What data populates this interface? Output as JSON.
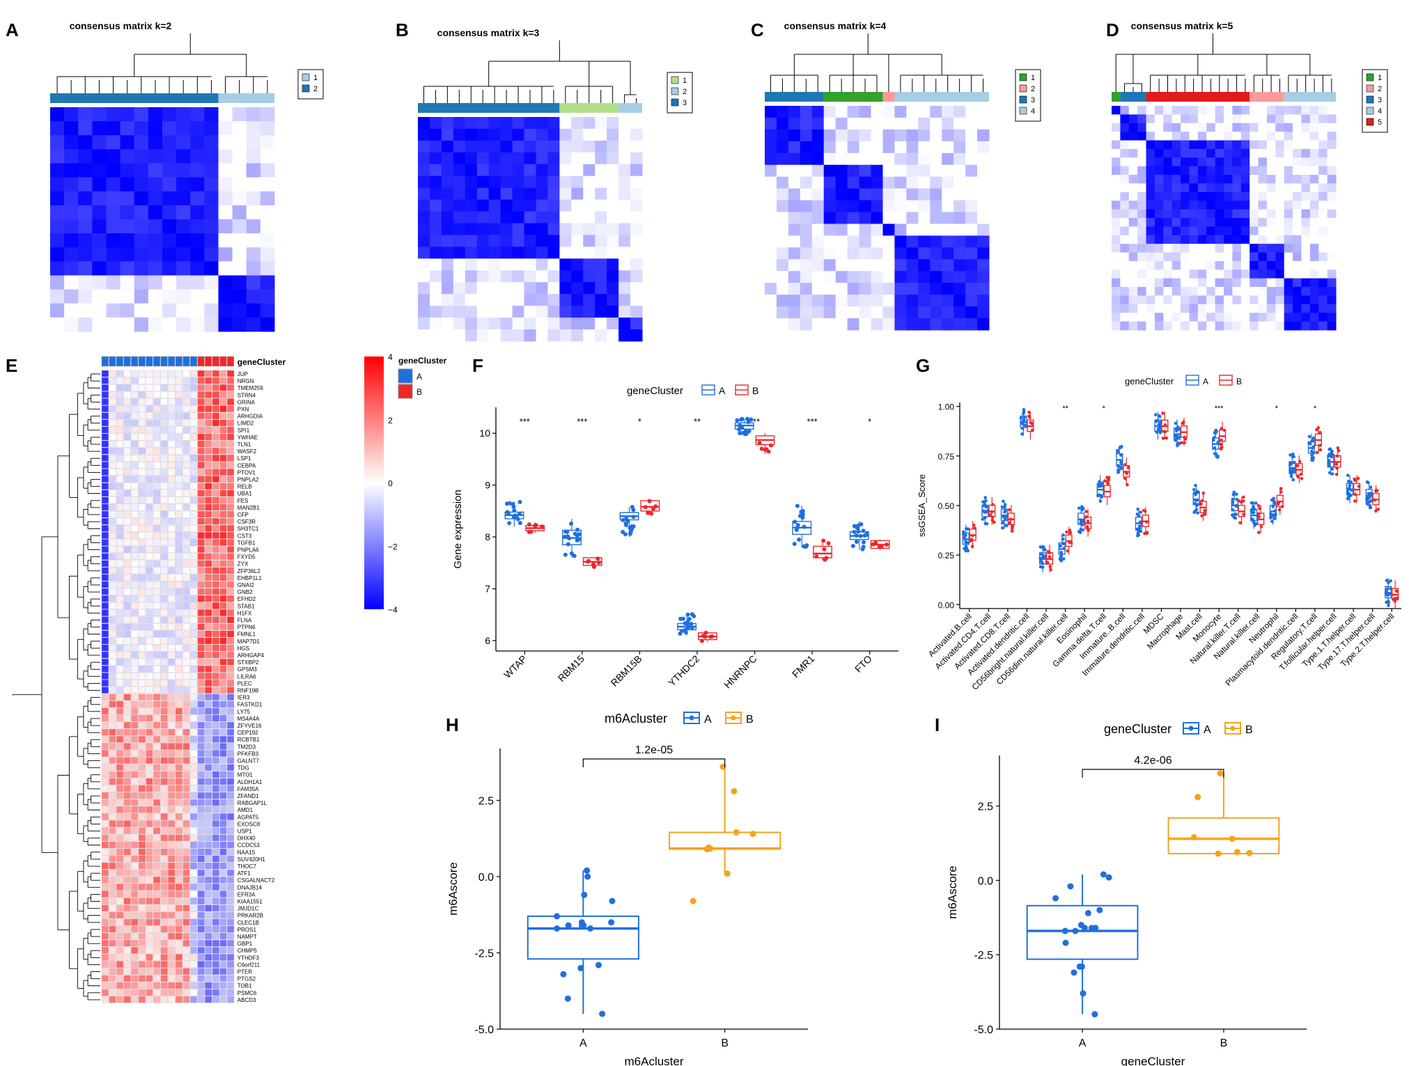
{
  "panels": {
    "A": "A",
    "B": "B",
    "C": "C",
    "D": "D",
    "E": "E",
    "F": "F",
    "G": "G",
    "H": "H",
    "I": "I"
  },
  "chart_data": [
    {
      "id": "A",
      "type": "heatmap",
      "title": "consensus matrix k=2",
      "legend": [
        "1",
        "2"
      ],
      "legend_colors": [
        "#a6cee3",
        "#1f78b4"
      ],
      "cluster_sizes": [
        4,
        12
      ],
      "cluster_order": [
        2,
        1
      ],
      "x": [],
      "y": []
    },
    {
      "id": "B",
      "type": "heatmap",
      "title": "consensus matrix k=3",
      "legend": [
        "1",
        "2",
        "3"
      ],
      "legend_colors": [
        "#b2df8a",
        "#a6cee3",
        "#1f78b4"
      ],
      "cluster_sizes": [
        5,
        2,
        12
      ],
      "cluster_order": [
        3,
        1,
        2
      ],
      "x": [],
      "y": []
    },
    {
      "id": "C",
      "type": "heatmap",
      "title": "consensus matrix k=4",
      "legend": [
        "1",
        "2",
        "3",
        "4"
      ],
      "legend_colors": [
        "#33a02c",
        "#fb9a99",
        "#1f78b4",
        "#a6cee3"
      ],
      "cluster_sizes": [
        5,
        1,
        5,
        8
      ],
      "cluster_order": [
        3,
        1,
        2,
        4
      ],
      "x": [],
      "y": []
    },
    {
      "id": "D",
      "type": "heatmap",
      "title": "consensus matrix k=5",
      "legend": [
        "1",
        "2",
        "3",
        "4",
        "5"
      ],
      "legend_colors": [
        "#33a02c",
        "#fb9a99",
        "#1f78b4",
        "#a6cee3",
        "#e31a1c"
      ],
      "cluster_sizes": [
        1,
        4,
        3,
        6,
        12
      ],
      "cluster_order": [
        1,
        3,
        5,
        2,
        4
      ],
      "x": [],
      "y": []
    },
    {
      "id": "E",
      "type": "heatmap",
      "annotation_title": "geneCluster",
      "annotation_legend": [
        "A",
        "B"
      ],
      "annotation_colors": [
        "#1f6fe0",
        "#f0262a"
      ],
      "columns_A": 13,
      "columns_B": 5,
      "colorbar_ticks": [
        4,
        2,
        0,
        -2,
        -4
      ],
      "colorbar_colors": [
        "#ff0000",
        "#ffffff",
        "#0000ff"
      ],
      "genes_up_in_B": [
        "JUP",
        "NRGN",
        "TMEM259",
        "STRN4",
        "GRINA",
        "PXN",
        "ARHGDIA",
        "LIMD2",
        "SPI1",
        "YWHAE",
        "TLN1",
        "WASF2",
        "LSP1",
        "CEBPA",
        "PTOV1",
        "PNPLA2",
        "RELB",
        "UBA1",
        "FES",
        "MAN2B1",
        "CFP",
        "CSF3R",
        "SH3TC1",
        "CST3",
        "TGFB1",
        "PNPLA6",
        "FXYD5",
        "ZYX",
        "ZFP36L2",
        "EHBP1L1",
        "GNAI2",
        "GNB2",
        "EFHD2",
        "STAB1",
        "H1FX",
        "FLNA",
        "PTPN6",
        "FMNL1",
        "MAP7D1",
        "HGS",
        "ARHGAP4",
        "STXBP2",
        "GPSM3",
        "LILRA6",
        "PLEC",
        "RNF19B"
      ],
      "genes_up_in_A": [
        "IER3",
        "FASTKD1",
        "LY75",
        "MS4A4A",
        "ZFYVE16",
        "CEP192",
        "RCBTB1",
        "TM2D3",
        "PFKFB3",
        "GALNT7",
        "TDG",
        "MTO1",
        "ALDH1A1",
        "FAM35A",
        "ZFAND1",
        "RABGAP1L",
        "AMD1",
        "AGPAT5",
        "EXOSC8",
        "USP1",
        "DHX40",
        "CCDC53",
        "NAA15",
        "SUV420H1",
        "THOC7",
        "ATF1",
        "CSGALNACT2",
        "DNAJB14",
        "EFR3A",
        "KIAA1551",
        "JMJD1C",
        "PRKAR2B",
        "CLEC1B",
        "PROS1",
        "NAMPT",
        "GBP1",
        "CHMP5",
        "YTHDF3",
        "C6orf211",
        "PTER",
        "PTGS2",
        "TOB1",
        "PSMC6",
        "ABCD3"
      ],
      "x": [],
      "y": []
    },
    {
      "id": "F",
      "type": "box",
      "legend_title": "geneCluster",
      "legend": [
        "A",
        "B"
      ],
      "colors": [
        "#1f6fe0",
        "#f0262a"
      ],
      "ylabel": "Gene expression",
      "xlabel": "",
      "ylim": [
        5.8,
        10.5
      ],
      "yticks": [
        6,
        7,
        8,
        9,
        10
      ],
      "categories": [
        "WTAP",
        "RBM15",
        "RBM15B",
        "YTHDC2",
        "HNRNPC",
        "FMR1",
        "FTO"
      ],
      "significance": [
        "***",
        "***",
        "*",
        "**",
        "***",
        "***",
        "*"
      ],
      "series": [
        {
          "name": "A",
          "medians": [
            8.42,
            7.98,
            8.4,
            6.27,
            10.15,
            8.18,
            8.02
          ],
          "q1": [
            8.35,
            7.85,
            8.33,
            6.21,
            10.08,
            8.05,
            7.95
          ],
          "q3": [
            8.48,
            8.13,
            8.47,
            6.33,
            10.2,
            8.3,
            8.1
          ],
          "min": [
            8.2,
            7.6,
            8.0,
            6.1,
            9.95,
            7.8,
            7.75
          ],
          "max": [
            8.68,
            8.35,
            8.58,
            6.52,
            10.28,
            8.6,
            8.3
          ]
        },
        {
          "name": "B",
          "medians": [
            8.17,
            7.52,
            8.58,
            6.08,
            9.87,
            7.68,
            7.85
          ],
          "q1": [
            8.12,
            7.45,
            8.5,
            6.02,
            9.78,
            7.6,
            7.78
          ],
          "q3": [
            8.22,
            7.6,
            8.7,
            6.15,
            9.95,
            7.82,
            7.93
          ],
          "min": [
            8.08,
            7.4,
            8.45,
            5.98,
            9.6,
            7.55,
            7.75
          ],
          "max": [
            8.28,
            7.6,
            8.72,
            6.18,
            10.0,
            7.95,
            7.95
          ]
        }
      ]
    },
    {
      "id": "G",
      "type": "box",
      "legend_title": "geneCluster",
      "legend": [
        "A",
        "B"
      ],
      "colors": [
        "#1f6fe0",
        "#f0262a"
      ],
      "ylabel": "ssGSEA_Score",
      "xlabel": "",
      "ylim": [
        -0.02,
        1.02
      ],
      "yticks": [
        0.0,
        0.25,
        0.5,
        0.75,
        1.0
      ],
      "ytick_labels": [
        "0.00",
        "0.25",
        "0.50",
        "0.75",
        "1.00"
      ],
      "categories": [
        "Activated.B.cell",
        "Activated.CD4.T.cell",
        "Activated.CD8.T.cell",
        "Activated.dendritic.cell",
        "CD56bright.natural.killer.cell",
        "CD56dim.natural.killer.cell",
        "Eosinophil",
        "Gamma.delta.T.cell",
        "Immature..B.cell",
        "Immature.dendritic.cell",
        "MDSC",
        "Macrophage",
        "Mast.cell",
        "Monocyte",
        "Natural.killer.T.cell",
        "Natural.killer.cell",
        "Neutrophil",
        "Plasmacytoid.dendritic.cell",
        "Regulatory.T.cell",
        "T.follicular.helper.cell",
        "Type.1.T.helper.cell",
        "Type.17.T.helper.cell",
        "Type.2.T.helper.cell"
      ],
      "significance": [
        "",
        "",
        "",
        "",
        "",
        "**",
        "",
        "*",
        "",
        "",
        "",
        "",
        "",
        "***",
        "",
        "",
        "*",
        "",
        "*",
        "",
        "",
        "",
        ""
      ],
      "series": [
        {
          "name": "A",
          "medians": [
            0.33,
            0.47,
            0.45,
            0.92,
            0.23,
            0.28,
            0.43,
            0.58,
            0.73,
            0.41,
            0.9,
            0.86,
            0.53,
            0.81,
            0.5,
            0.45,
            0.47,
            0.69,
            0.79,
            0.72,
            0.58,
            0.55,
            0.06
          ]
        },
        {
          "name": "B",
          "medians": [
            0.35,
            0.47,
            0.43,
            0.9,
            0.23,
            0.32,
            0.41,
            0.57,
            0.67,
            0.42,
            0.9,
            0.87,
            0.49,
            0.85,
            0.47,
            0.43,
            0.52,
            0.68,
            0.83,
            0.72,
            0.58,
            0.53,
            0.05
          ]
        }
      ]
    },
    {
      "id": "H",
      "type": "box",
      "legend_title": "m6Acluster",
      "legend": [
        "A",
        "B"
      ],
      "colors": [
        "#1f6fe0",
        "#f5a31a"
      ],
      "xlabel": "m6Acluster",
      "ylabel": "m6Ascore",
      "ylim": [
        -5.0,
        4.2
      ],
      "yticks": [
        -5.0,
        -2.5,
        0.0,
        2.5
      ],
      "ytick_labels": [
        "-5.0",
        "-2.5",
        "0.0",
        "2.5"
      ],
      "categories": [
        "A",
        "B"
      ],
      "pvalue": "1.2e-05",
      "series": [
        {
          "name": "A",
          "median": -1.7,
          "q1": -2.7,
          "q3": -1.3,
          "min": -4.5,
          "max": 0.2,
          "points": [
            0.2,
            0.0,
            -0.6,
            -0.8,
            -1.3,
            -1.5,
            -1.6,
            -1.6,
            -1.7,
            -1.7,
            -1.6,
            -1.5,
            -2.9,
            -3.2,
            -3.0,
            -4.0,
            -4.5
          ]
        },
        {
          "name": "B",
          "median": 0.92,
          "q1": 0.9,
          "q3": 1.45,
          "min": 0.1,
          "max": 3.6,
          "points": [
            3.6,
            2.8,
            1.45,
            1.4,
            0.95,
            0.92,
            0.9,
            0.1,
            -0.8
          ]
        }
      ]
    },
    {
      "id": "I",
      "type": "box",
      "legend_title": "geneCluster",
      "legend": [
        "A",
        "B"
      ],
      "colors": [
        "#1f6fe0",
        "#f5a31a"
      ],
      "xlabel": "geneCluster",
      "ylabel": "m6Ascore",
      "ylim": [
        -5.0,
        4.2
      ],
      "yticks": [
        -5.0,
        -2.5,
        0.0,
        2.5
      ],
      "ytick_labels": [
        "-5.0",
        "-2.5",
        "0.0",
        "2.5"
      ],
      "categories": [
        "A",
        "B"
      ],
      "pvalue": "4.2e-06",
      "series": [
        {
          "name": "A",
          "median": -1.7,
          "q1": -2.65,
          "q3": -0.85,
          "min": -4.5,
          "max": 0.2,
          "points": [
            0.2,
            0.1,
            -0.2,
            -0.6,
            -1.0,
            -1.1,
            -1.5,
            -1.6,
            -1.7,
            -1.7,
            -1.6,
            -1.6,
            -2.1,
            -2.9,
            -3.1,
            -2.9,
            -3.8,
            -4.5
          ]
        },
        {
          "name": "B",
          "median": 1.4,
          "q1": 0.9,
          "q3": 2.1,
          "min": 0.9,
          "max": 3.6,
          "points": [
            3.6,
            2.8,
            1.45,
            1.4,
            0.95,
            0.92,
            0.9
          ]
        }
      ]
    }
  ]
}
